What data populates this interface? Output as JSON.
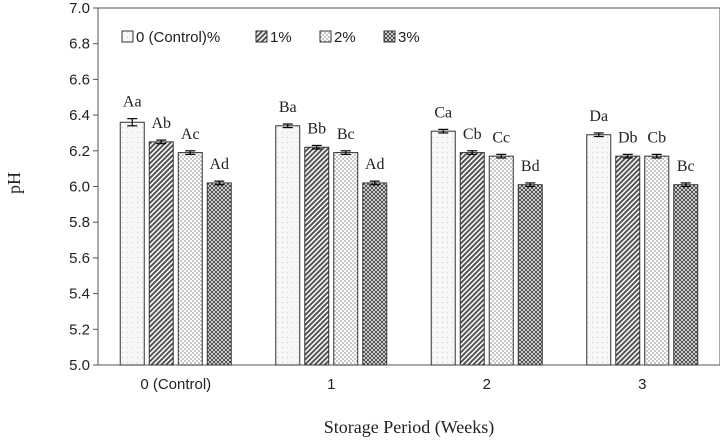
{
  "chart_data": {
    "type": "bar",
    "title": "",
    "xlabel": "Storage Period (Weeks)",
    "ylabel": "pH",
    "ylim": [
      5.0,
      7.0
    ],
    "yticks": [
      "5.0",
      "5.2",
      "5.4",
      "5.6",
      "5.8",
      "6.0",
      "6.2",
      "6.4",
      "6.6",
      "6.8",
      "7.0"
    ],
    "grid": false,
    "legend_position": "top-left",
    "categories": [
      "0 (Control)",
      "1",
      "2",
      "3"
    ],
    "series": [
      {
        "name": "0 (Control)%",
        "pattern": "dots-sparse",
        "values": [
          6.36,
          6.34,
          6.31,
          6.29
        ],
        "errors": [
          0.02,
          0.01,
          0.01,
          0.01
        ],
        "labels": [
          "Aa",
          "Ba",
          "Ca",
          "Da"
        ]
      },
      {
        "name": "1%",
        "pattern": "diagonal",
        "values": [
          6.25,
          6.22,
          6.19,
          6.17
        ],
        "errors": [
          0.01,
          0.01,
          0.01,
          0.01
        ],
        "labels": [
          "Ab",
          "Bb",
          "Cb",
          "Db"
        ]
      },
      {
        "name": "2%",
        "pattern": "dots",
        "values": [
          6.19,
          6.19,
          6.17,
          6.17
        ],
        "errors": [
          0.01,
          0.01,
          0.01,
          0.01
        ],
        "labels": [
          "Ac",
          "Bc",
          "Cc",
          "Cb"
        ]
      },
      {
        "name": "3%",
        "pattern": "crosshatch",
        "values": [
          6.02,
          6.02,
          6.01,
          6.01
        ],
        "errors": [
          0.01,
          0.01,
          0.01,
          0.01
        ],
        "labels": [
          "Ad",
          "Ad",
          "Bd",
          "Bc"
        ]
      }
    ]
  }
}
